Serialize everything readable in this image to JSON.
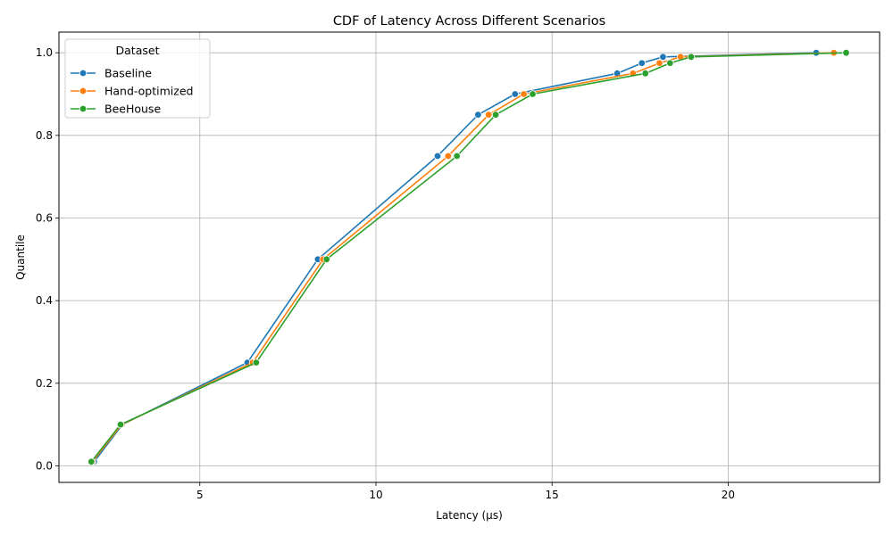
{
  "chart_data": {
    "type": "line",
    "title": "CDF of Latency Across Different Scenarios",
    "xlabel": "Latency (µs)",
    "ylabel": "Quantile",
    "xlim": [
      1.0,
      24.3
    ],
    "ylim": [
      -0.04,
      1.05
    ],
    "xticks": [
      5,
      10,
      15,
      20
    ],
    "yticks": [
      0.0,
      0.2,
      0.4,
      0.6,
      0.8,
      1.0
    ],
    "xtick_labels": [
      "5",
      "10",
      "15",
      "20"
    ],
    "ytick_labels": [
      "0.0",
      "0.2",
      "0.4",
      "0.6",
      "0.8",
      "1.0"
    ],
    "grid": true,
    "legend": {
      "title": "Dataset",
      "placement": "top-left"
    },
    "series": [
      {
        "name": "Baseline",
        "color": "#1f77b4",
        "points": [
          [
            2.0,
            0.01
          ],
          [
            2.8,
            0.1
          ],
          [
            6.35,
            0.25
          ],
          [
            8.35,
            0.5
          ],
          [
            11.75,
            0.75
          ],
          [
            12.9,
            0.85
          ],
          [
            13.95,
            0.9
          ],
          [
            16.85,
            0.95
          ],
          [
            17.55,
            0.975
          ],
          [
            18.15,
            0.99
          ],
          [
            22.5,
            1.0
          ]
        ]
      },
      {
        "name": "Hand-optimized",
        "color": "#ff7f0e",
        "points": [
          [
            1.95,
            0.01
          ],
          [
            2.78,
            0.1
          ],
          [
            6.5,
            0.25
          ],
          [
            8.5,
            0.5
          ],
          [
            12.05,
            0.75
          ],
          [
            13.2,
            0.85
          ],
          [
            14.2,
            0.9
          ],
          [
            17.3,
            0.95
          ],
          [
            18.05,
            0.975
          ],
          [
            18.65,
            0.99
          ],
          [
            23.0,
            1.0
          ]
        ]
      },
      {
        "name": "BeeHouse",
        "color": "#2ca02c",
        "points": [
          [
            1.92,
            0.01
          ],
          [
            2.75,
            0.1
          ],
          [
            6.6,
            0.25
          ],
          [
            8.6,
            0.5
          ],
          [
            12.3,
            0.75
          ],
          [
            13.4,
            0.85
          ],
          [
            14.45,
            0.9
          ],
          [
            17.65,
            0.95
          ],
          [
            18.35,
            0.975
          ],
          [
            18.95,
            0.99
          ],
          [
            23.35,
            1.0
          ]
        ]
      }
    ]
  }
}
